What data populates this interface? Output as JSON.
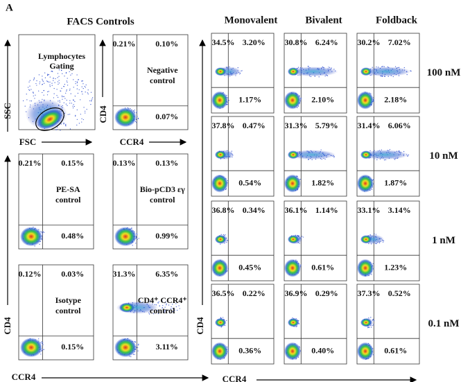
{
  "panel_label": "A",
  "controls": {
    "title": "FACS Controls",
    "gating": {
      "label_lines": [
        "Lymphocytes",
        "Gating"
      ],
      "y_axis": "SSC",
      "x_axis": "FSC"
    },
    "axes": {
      "y_axis": "CD4",
      "x_axis": "CCR4"
    },
    "panels": [
      {
        "ul": "0.21%",
        "ur": "0.10%",
        "lr": "0.07%",
        "label_lines": [
          "Negative",
          "control"
        ]
      },
      {
        "ul": "0.21%",
        "ur": "0.15%",
        "lr": "0.48%",
        "label_lines": [
          "PE-SA",
          "control"
        ]
      },
      {
        "ul": "0.13%",
        "ur": "0.13%",
        "lr": "0.99%",
        "label_lines": [
          "Bio-pCD3 εγ",
          "control"
        ]
      },
      {
        "ul": "0.12%",
        "ur": "0.03%",
        "lr": "0.15%",
        "label_lines": [
          "Isotype",
          "control"
        ]
      },
      {
        "ul": "31.3%",
        "ur": "6.35%",
        "lr": "3.11%",
        "label_lines": [
          "CD4⁺ CCR4⁺",
          "control"
        ]
      }
    ]
  },
  "titration": {
    "columns": [
      "Monovalent",
      "Bivalent",
      "Foldback"
    ],
    "axes": {
      "y_axis": "CD4",
      "x_axis": "CCR4"
    },
    "rows": [
      {
        "label": "100 nM",
        "cells": [
          {
            "ul": "34.5%",
            "ur": "3.20%",
            "lr": "1.17%"
          },
          {
            "ul": "30.8%",
            "ur": "6.24%",
            "lr": "2.10%"
          },
          {
            "ul": "30.2%",
            "ur": "7.02%",
            "lr": "2.18%"
          }
        ]
      },
      {
        "label": "10 nM",
        "cells": [
          {
            "ul": "37.8%",
            "ur": "0.47%",
            "lr": "0.54%"
          },
          {
            "ul": "31.3%",
            "ur": "5.79%",
            "lr": "1.82%"
          },
          {
            "ul": "31.4%",
            "ur": "6.06%",
            "lr": "1.87%"
          }
        ]
      },
      {
        "label": "1 nM",
        "cells": [
          {
            "ul": "36.8%",
            "ur": "0.34%",
            "lr": "0.45%"
          },
          {
            "ul": "36.1%",
            "ur": "1.14%",
            "lr": "0.61%"
          },
          {
            "ul": "33.1%",
            "ur": "3.14%",
            "lr": "1.23%"
          }
        ]
      },
      {
        "label": "0.1 nM",
        "cells": [
          {
            "ul": "36.5%",
            "ur": "0.22%",
            "lr": "0.36%"
          },
          {
            "ul": "36.9%",
            "ur": "0.29%",
            "lr": "0.40%"
          },
          {
            "ul": "37.3%",
            "ur": "0.52%",
            "lr": "0.61%"
          }
        ]
      }
    ]
  }
}
